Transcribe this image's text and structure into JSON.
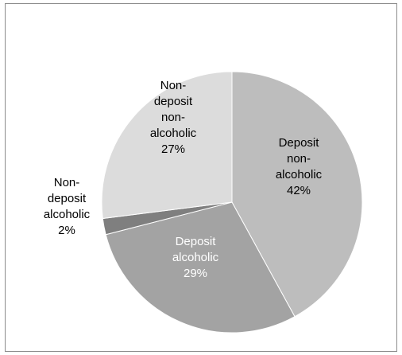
{
  "chart_data": {
    "type": "pie",
    "title": "",
    "start_angle_deg": 0,
    "direction": "clockwise",
    "slices": [
      {
        "label_lines": [
          "Deposit",
          "non-",
          "alcoholic"
        ],
        "percent_text": "42%",
        "value": 42,
        "color": "#bdbdbd",
        "label_color": "#000000"
      },
      {
        "label_lines": [
          "Deposit",
          "alcoholic"
        ],
        "percent_text": "29%",
        "value": 29,
        "color": "#a3a3a3",
        "label_color": "#ffffff"
      },
      {
        "label_lines": [
          "Non-",
          "deposit",
          "alcoholic"
        ],
        "percent_text": "2%",
        "value": 2,
        "color": "#7f7f7f",
        "label_color": "#000000"
      },
      {
        "label_lines": [
          "Non-",
          "deposit",
          "non-",
          "alcoholic"
        ],
        "percent_text": "27%",
        "value": 27,
        "color": "#dcdcdc",
        "label_color": "#000000"
      }
    ]
  }
}
